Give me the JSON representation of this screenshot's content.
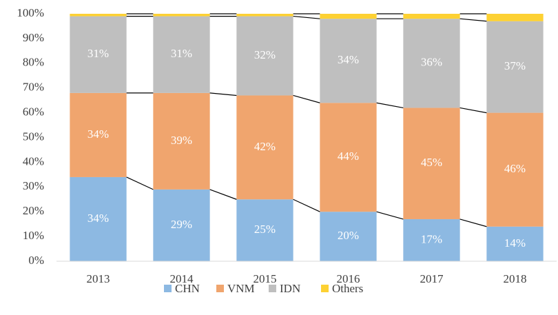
{
  "chart_data": {
    "type": "stacked-bar",
    "categories": [
      "2013",
      "2014",
      "2015",
      "2016",
      "2017",
      "2018"
    ],
    "series": [
      {
        "name": "CHN",
        "color": "#8db9e2",
        "values": [
          34,
          29,
          25,
          20,
          17,
          14
        ],
        "value_labels": [
          "34%",
          "29%",
          "25%",
          "20%",
          "17%",
          "14%"
        ]
      },
      {
        "name": "VNM",
        "color": "#f0a56e",
        "values": [
          34,
          39,
          42,
          44,
          45,
          46
        ],
        "value_labels": [
          "34%",
          "39%",
          "42%",
          "44%",
          "45%",
          "46%"
        ]
      },
      {
        "name": "IDN",
        "color": "#bfbfbf",
        "values": [
          31,
          31,
          32,
          34,
          36,
          37
        ],
        "value_labels": [
          "31%",
          "31%",
          "32%",
          "34%",
          "36%",
          "37%"
        ]
      },
      {
        "name": "Others",
        "color": "#fdd133",
        "values": [
          1,
          1,
          1,
          2,
          2,
          3
        ]
      }
    ],
    "ylim": [
      0,
      100
    ],
    "yticks": [
      {
        "value": 0,
        "label": "0%"
      },
      {
        "value": 10,
        "label": "10%"
      },
      {
        "value": 20,
        "label": "20%"
      },
      {
        "value": 30,
        "label": "30%"
      },
      {
        "value": 40,
        "label": "40%"
      },
      {
        "value": 50,
        "label": "50%"
      },
      {
        "value": 60,
        "label": "60%"
      },
      {
        "value": 70,
        "label": "70%"
      },
      {
        "value": 80,
        "label": "80%"
      },
      {
        "value": 90,
        "label": "90%"
      },
      {
        "value": 100,
        "label": "100%"
      }
    ],
    "series_lines": true,
    "legend": "bottom"
  }
}
